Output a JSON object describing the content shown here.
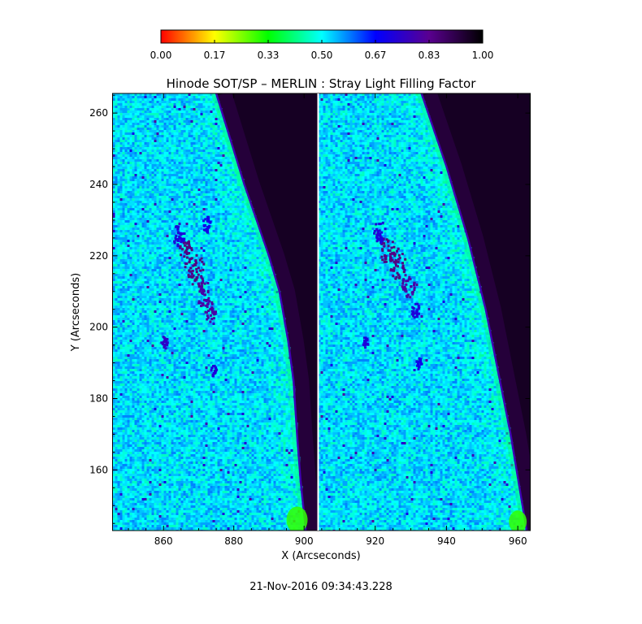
{
  "chart_data": {
    "type": "heatmap",
    "title": "Hinode SOT/SP – MERLIN : Stray Light Filling Factor",
    "xlabel": "X (Arcseconds)",
    "ylabel": "Y (Arcseconds)",
    "timestamp": "21-Nov-2016 09:34:43.228",
    "colorbar": {
      "range": [
        0,
        1
      ],
      "tick_labels": [
        "0.00",
        "0.17",
        "0.33",
        "0.50",
        "0.67",
        "0.83",
        "1.00"
      ],
      "colormap": [
        "#ff0000",
        "#ffff00",
        "#00ff00",
        "#00ffff",
        "#0000ff",
        "#5a0090",
        "#000000"
      ]
    },
    "panels": [
      {
        "name": "left",
        "xlim": [
          845.5,
          904
        ],
        "ylim": [
          143,
          265.5
        ],
        "xticks": [
          860,
          880,
          900
        ],
        "xtick_labels": [
          "860",
          "880",
          "900"
        ],
        "yticks": [
          160,
          180,
          200,
          220,
          240,
          260
        ],
        "ytick_labels": [
          "160",
          "180",
          "200",
          "220",
          "240",
          "260"
        ],
        "limb": [
          [
            875,
            265.5
          ],
          [
            883,
            240
          ],
          [
            890,
            220
          ],
          [
            893,
            210
          ],
          [
            895.5,
            196
          ],
          [
            897,
            185
          ],
          [
            898,
            170
          ],
          [
            899,
            157
          ],
          [
            900.5,
            143
          ]
        ],
        "dark_value": 0.96,
        "disk_value": 0.52,
        "edge_value": 0.78,
        "features": [
          [
            866,
            221,
            0.85,
            2.5
          ],
          [
            869,
            216,
            0.85,
            3.0
          ],
          [
            871,
            210,
            0.8,
            2.5
          ],
          [
            873,
            205,
            0.8,
            2.0
          ],
          [
            864,
            226,
            0.72,
            2.0
          ],
          [
            872,
            229,
            0.7,
            1.5
          ],
          [
            860,
            196,
            0.75,
            1.2
          ],
          [
            874,
            188,
            0.72,
            1.0
          ]
        ],
        "bright_patch": [
          898,
          143,
          3,
          6,
          0.3
        ]
      },
      {
        "name": "right",
        "xlim": [
          904,
          963.5
        ],
        "ylim": [
          143,
          265.5
        ],
        "xticks": [
          920,
          940,
          960
        ],
        "xtick_labels": [
          "920",
          "940",
          "960"
        ],
        "yticks": [],
        "ytick_labels": [],
        "limb": [
          [
            933,
            265.5
          ],
          [
            940,
            245
          ],
          [
            946,
            225
          ],
          [
            951,
            205
          ],
          [
            955,
            185
          ],
          [
            958,
            170
          ],
          [
            960.5,
            155
          ],
          [
            962.5,
            143
          ]
        ],
        "dark_value": 0.96,
        "disk_value": 0.52,
        "edge_value": 0.78,
        "features": [
          [
            923,
            222,
            0.85,
            2.5
          ],
          [
            926,
            218,
            0.85,
            2.8
          ],
          [
            929,
            212,
            0.8,
            2.2
          ],
          [
            921,
            227,
            0.72,
            2.0
          ],
          [
            931,
            205,
            0.72,
            1.5
          ],
          [
            917,
            196,
            0.72,
            1.0
          ],
          [
            932,
            190,
            0.7,
            1.0
          ]
        ],
        "bright_patch": [
          960,
          143,
          2.5,
          5,
          0.3
        ]
      }
    ]
  }
}
